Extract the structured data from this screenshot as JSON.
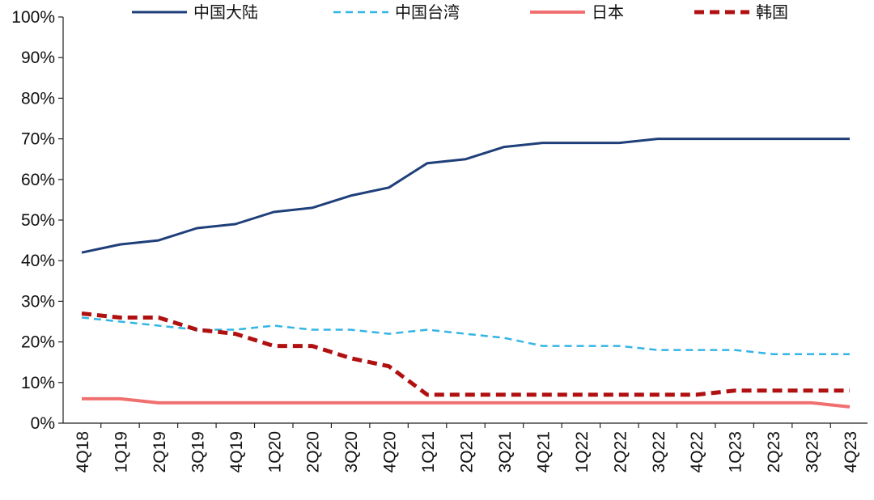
{
  "chart_data": {
    "type": "line",
    "title": "",
    "xlabel": "",
    "ylabel": "",
    "categories": [
      "4Q18",
      "1Q19",
      "2Q19",
      "3Q19",
      "4Q19",
      "1Q20",
      "2Q20",
      "3Q20",
      "4Q20",
      "1Q21",
      "2Q21",
      "3Q21",
      "4Q21",
      "1Q22",
      "2Q22",
      "3Q22",
      "4Q22",
      "1Q23",
      "2Q23",
      "3Q23",
      "4Q23"
    ],
    "ylim": [
      0,
      100
    ],
    "yticks": [
      "0%",
      "10%",
      "20%",
      "30%",
      "40%",
      "50%",
      "60%",
      "70%",
      "80%",
      "90%",
      "100%"
    ],
    "grid": false,
    "legend_position": "top",
    "series": [
      {
        "name": "中国大陆",
        "color": "#1f3f7a",
        "style": "solid",
        "width": 3,
        "values": [
          42,
          44,
          45,
          48,
          49,
          52,
          53,
          56,
          58,
          64,
          65,
          68,
          69,
          69,
          69,
          70,
          70,
          70,
          70,
          70,
          70
        ]
      },
      {
        "name": "中国台湾",
        "color": "#33b5e5",
        "style": "dashed",
        "width": 2.5,
        "values": [
          26,
          25,
          24,
          23,
          23,
          24,
          23,
          23,
          22,
          23,
          22,
          21,
          19,
          19,
          19,
          18,
          18,
          18,
          17,
          17,
          17
        ]
      },
      {
        "name": "日本",
        "color": "#f07070",
        "style": "solid",
        "width": 4,
        "values": [
          6,
          6,
          5,
          5,
          5,
          5,
          5,
          5,
          5,
          5,
          5,
          5,
          5,
          5,
          5,
          5,
          5,
          5,
          5,
          5,
          4
        ]
      },
      {
        "name": "韩国",
        "color": "#b01010",
        "style": "dashed",
        "width": 5,
        "values": [
          27,
          26,
          26,
          23,
          22,
          19,
          19,
          16,
          14,
          7,
          7,
          7,
          7,
          7,
          7,
          7,
          7,
          8,
          8,
          8,
          8
        ]
      }
    ]
  }
}
